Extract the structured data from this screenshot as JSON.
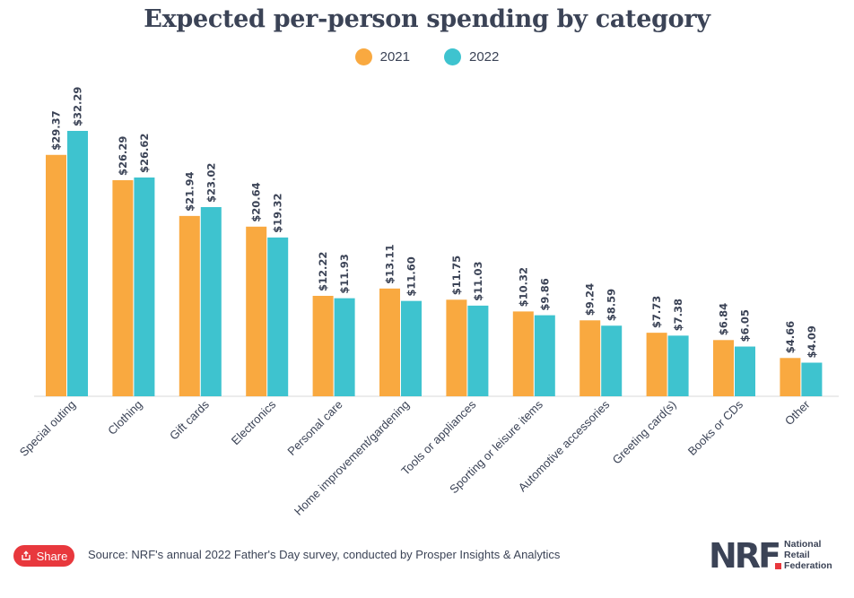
{
  "chart_data": {
    "type": "bar",
    "title": "Expected per-person spending by category",
    "categories": [
      "Special outing",
      "Clothing",
      "Gift cards",
      "Electronics",
      "Personal care",
      "Home improvement/gardening",
      "Tools or appliances",
      "Sporting or leisure items",
      "Automotive accessories",
      "Greeting card(s)",
      "Books or CDs",
      "Other"
    ],
    "series": [
      {
        "name": "2021",
        "color": "#f9a940",
        "values": [
          29.37,
          26.29,
          21.94,
          20.64,
          12.22,
          13.11,
          11.75,
          10.32,
          9.24,
          7.73,
          6.84,
          4.66
        ],
        "labels": [
          "$29.37",
          "$26.29",
          "$21.94",
          "$20.64",
          "$12.22",
          "$13.11",
          "$11.75",
          "$10.32",
          "$9.24",
          "$7.73",
          "$6.84",
          "$4.66"
        ]
      },
      {
        "name": "2022",
        "color": "#3ec3cf",
        "values": [
          32.29,
          26.62,
          23.02,
          19.32,
          11.93,
          11.6,
          11.03,
          9.86,
          8.59,
          7.38,
          6.05,
          4.09
        ],
        "labels": [
          "$32.29",
          "$26.62",
          "$23.02",
          "$19.32",
          "$11.93",
          "$11.60",
          "$11.03",
          "$9.86",
          "$8.59",
          "$7.38",
          "$6.05",
          "$4.09"
        ]
      }
    ],
    "ylim": [
      0,
      32.29
    ],
    "legend": "top-center",
    "grid": false
  },
  "footer": {
    "share_label": "Share",
    "source": "Source: NRF's annual 2022 Father's Day survey, conducted by Prosper Insights & Analytics",
    "logo_mark": "NRF",
    "logo_line1": "National",
    "logo_line2": "Retail",
    "logo_line3": "Federation"
  },
  "icons": {
    "share": "share-icon"
  }
}
